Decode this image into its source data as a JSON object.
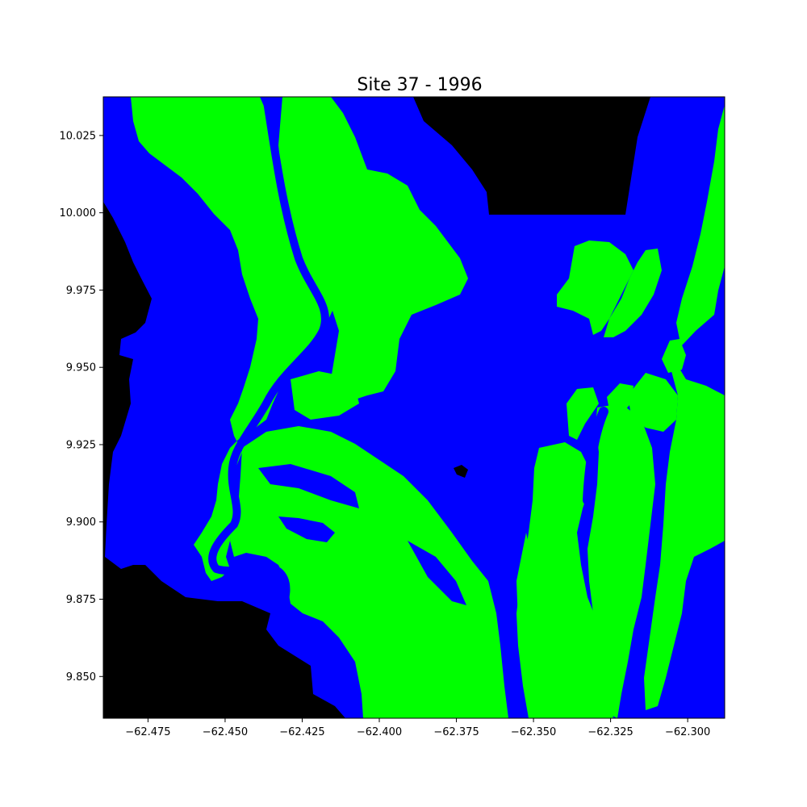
{
  "chart_data": {
    "type": "heatmap",
    "title": "Site 37 - 1996",
    "xlabel": "",
    "ylabel": "",
    "xlim": [
      -62.4895,
      -62.288
    ],
    "ylim": [
      9.8365,
      10.0375
    ],
    "x_ticks": [
      -62.475,
      -62.45,
      -62.425,
      -62.4,
      -62.375,
      -62.35,
      -62.325,
      -62.3
    ],
    "x_tick_labels": [
      "−62.475",
      "−62.450",
      "−62.425",
      "−62.400",
      "−62.375",
      "−62.350",
      "−62.325",
      "−62.300"
    ],
    "y_ticks": [
      10.025,
      10.0,
      9.975,
      9.95,
      9.925,
      9.9,
      9.875,
      9.85
    ],
    "y_tick_labels": [
      "10.025",
      "10.000",
      "9.975",
      "9.950",
      "9.925",
      "9.900",
      "9.875",
      "9.850"
    ],
    "classes": [
      {
        "color": "#0000ff"
      },
      {
        "color": "#00ff00"
      },
      {
        "color": "#000000"
      }
    ],
    "grid": false,
    "legend": "none"
  }
}
